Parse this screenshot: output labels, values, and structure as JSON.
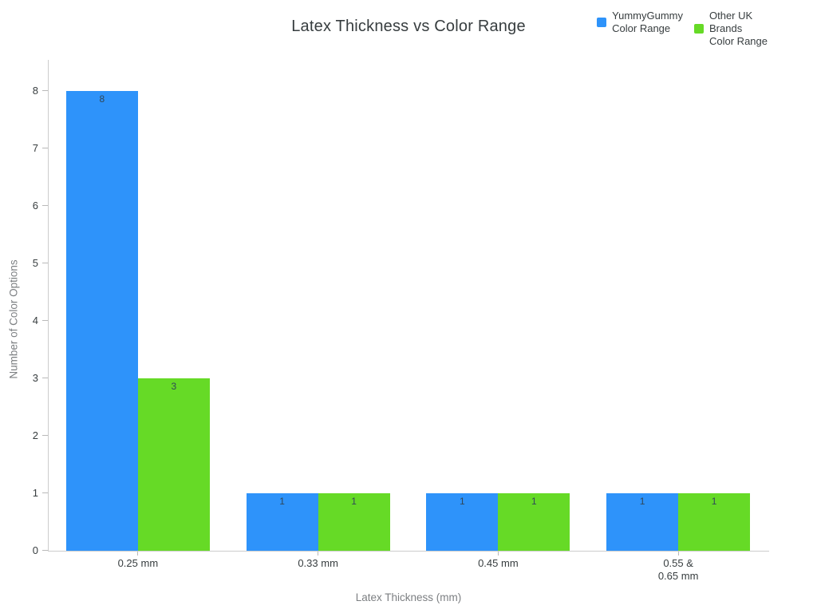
{
  "title": "Latex Thickness vs Color Range",
  "legend": [
    {
      "label": "YummyGummy\nColor Range",
      "color": "#2E93FA"
    },
    {
      "label": "Other UK\nBrands\nColor Range",
      "color": "#66DA26"
    }
  ],
  "chart_data": {
    "type": "bar",
    "title": "Latex Thickness vs Color Range",
    "categories": [
      "0.25 mm",
      "0.33 mm",
      "0.45 mm",
      "0.55 &\n0.65 mm"
    ],
    "series": [
      {
        "name": "YummyGummy Color Range",
        "color": "#2E93FA",
        "values": [
          8,
          1,
          1,
          1
        ]
      },
      {
        "name": "Other UK Brands Color Range",
        "color": "#66DA26",
        "values": [
          3,
          1,
          1,
          1
        ]
      }
    ],
    "xlabel": "Latex Thickness (mm)",
    "ylabel": "Number of Color Options",
    "ylim": [
      0,
      8
    ],
    "yticks": [
      0,
      1,
      2,
      3,
      4,
      5,
      6,
      7,
      8
    ],
    "grid": false,
    "legend_position": "top-right",
    "data_labels": true,
    "data_label_color": "#304758"
  }
}
